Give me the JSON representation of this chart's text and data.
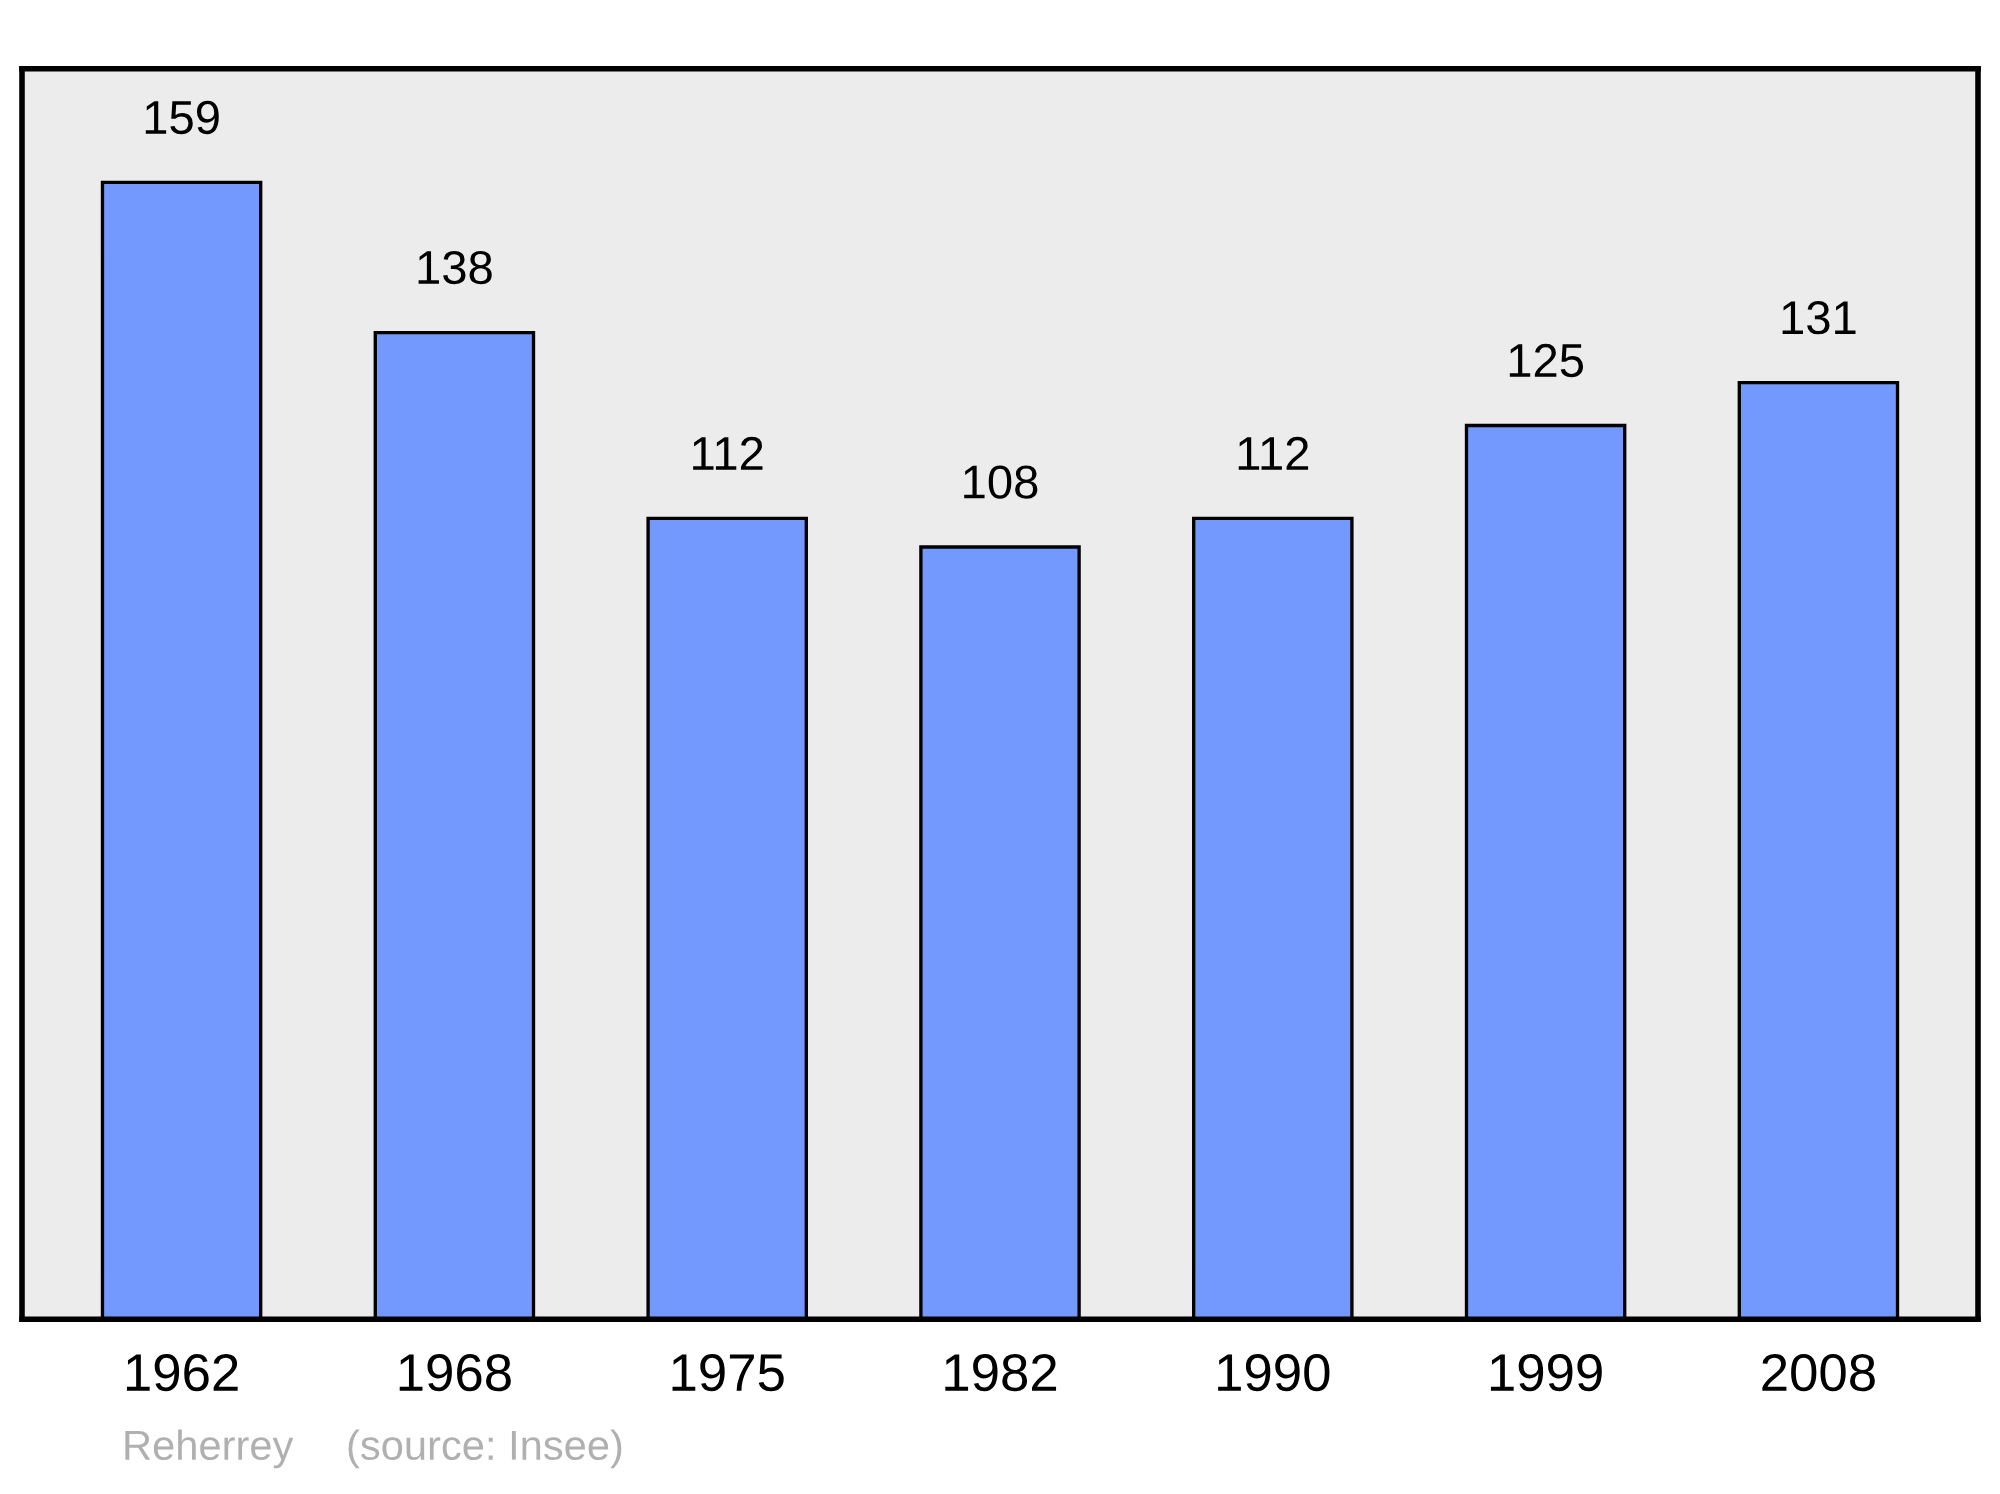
{
  "chart_data": {
    "type": "bar",
    "categories": [
      "1962",
      "1968",
      "1975",
      "1982",
      "1990",
      "1999",
      "2008"
    ],
    "values": [
      159,
      138,
      112,
      108,
      112,
      125,
      131
    ],
    "color": "#7399ff",
    "data_labels": true,
    "grid": false,
    "annotations": [
      "Reherrey",
      "(source: Insee)"
    ]
  }
}
